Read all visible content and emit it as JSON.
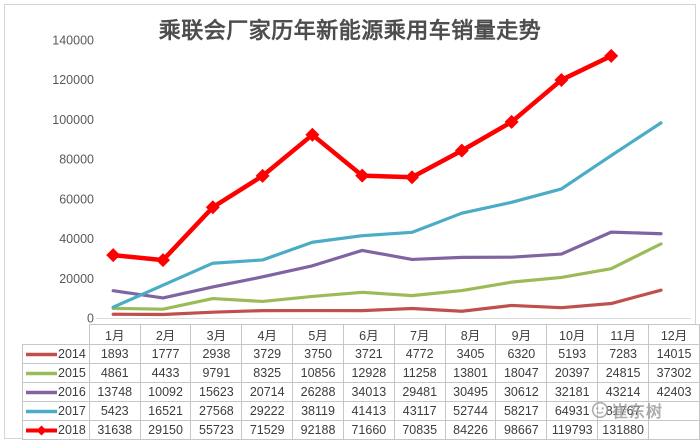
{
  "chart_data": {
    "type": "line",
    "title": "乘联会厂家历年新能源乘用车销量走势",
    "categories": [
      "1月",
      "2月",
      "3月",
      "4月",
      "5月",
      "6月",
      "7月",
      "8月",
      "9月",
      "10月",
      "11月",
      "12月"
    ],
    "series": [
      {
        "name": "2014",
        "color": "#C0504D",
        "marker": "none",
        "values": [
          1893,
          1777,
          2938,
          3729,
          3750,
          3721,
          4772,
          3405,
          6320,
          5193,
          7283,
          14015
        ]
      },
      {
        "name": "2015",
        "color": "#9BBB59",
        "marker": "none",
        "values": [
          4861,
          4433,
          9791,
          8325,
          10856,
          12928,
          11258,
          13801,
          18047,
          20397,
          24815,
          37302
        ]
      },
      {
        "name": "2016",
        "color": "#8064A2",
        "marker": "none",
        "values": [
          13748,
          10092,
          15623,
          20714,
          26288,
          34013,
          29481,
          30495,
          30612,
          32181,
          43214,
          42403
        ]
      },
      {
        "name": "2017",
        "color": "#4BACC6",
        "marker": "none",
        "values": [
          5423,
          16521,
          27568,
          29222,
          38119,
          41413,
          43117,
          52744,
          58217,
          64931,
          81767,
          98200
        ]
      },
      {
        "name": "2018",
        "color": "#FF0000",
        "marker": "diamond",
        "values": [
          31638,
          29150,
          55723,
          71529,
          92188,
          71660,
          70835,
          84226,
          98667,
          119793,
          131880,
          null
        ]
      }
    ],
    "ylim": [
      0,
      140000
    ],
    "ytick_step": 20000,
    "y_ticks": [
      "0",
      "20000",
      "40000",
      "60000",
      "80000",
      "100000",
      "120000",
      "140000"
    ],
    "grid": false,
    "legend_position": "data-table-left"
  },
  "table": {
    "rows": [
      {
        "year": "2014",
        "cells": [
          "1893",
          "1777",
          "2938",
          "3729",
          "3750",
          "3721",
          "4772",
          "3405",
          "6320",
          "5193",
          "7283",
          "14015"
        ]
      },
      {
        "year": "2015",
        "cells": [
          "4861",
          "4433",
          "9791",
          "8325",
          "10856",
          "12928",
          "11258",
          "13801",
          "18047",
          "20397",
          "24815",
          "37302"
        ]
      },
      {
        "year": "2016",
        "cells": [
          "13748",
          "10092",
          "15623",
          "20714",
          "26288",
          "34013",
          "29481",
          "30495",
          "30612",
          "32181",
          "43214",
          "42403"
        ]
      },
      {
        "year": "2017",
        "cells": [
          "5423",
          "16521",
          "27568",
          "29222",
          "38119",
          "41413",
          "43117",
          "52744",
          "58217",
          "64931",
          "81767",
          ""
        ]
      },
      {
        "year": "2018",
        "cells": [
          "31638",
          "29150",
          "55723",
          "71529",
          "92188",
          "71660",
          "70835",
          "84226",
          "98667",
          "119793",
          "131880",
          ""
        ]
      }
    ]
  },
  "watermark": {
    "text": "崔东树",
    "logo": "panda-face-logo"
  }
}
